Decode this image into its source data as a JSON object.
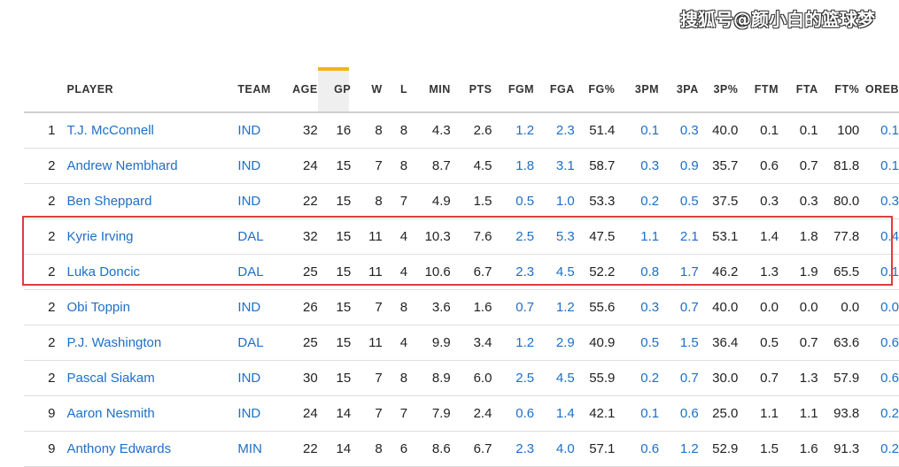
{
  "watermark": "搜狐号@颜小白的篮球梦",
  "columns": [
    "",
    "PLAYER",
    "TEAM",
    "AGE",
    "GP",
    "W",
    "L",
    "MIN",
    "PTS",
    "FGM",
    "FGA",
    "FG%",
    "3PM",
    "3PA",
    "3P%",
    "FTM",
    "FTA",
    "FT%",
    "OREB"
  ],
  "rows": [
    [
      "1",
      "T.J. McConnell",
      "IND",
      "32",
      "16",
      "8",
      "8",
      "4.3",
      "2.6",
      "1.2",
      "2.3",
      "51.4",
      "0.1",
      "0.3",
      "40.0",
      "0.1",
      "0.1",
      "100",
      "0.1"
    ],
    [
      "2",
      "Andrew Nembhard",
      "IND",
      "24",
      "15",
      "7",
      "8",
      "8.7",
      "4.5",
      "1.8",
      "3.1",
      "58.7",
      "0.3",
      "0.9",
      "35.7",
      "0.6",
      "0.7",
      "81.8",
      "0.1"
    ],
    [
      "2",
      "Ben Sheppard",
      "IND",
      "22",
      "15",
      "8",
      "7",
      "4.9",
      "1.5",
      "0.5",
      "1.0",
      "53.3",
      "0.2",
      "0.5",
      "37.5",
      "0.3",
      "0.3",
      "80.0",
      "0.3"
    ],
    [
      "2",
      "Kyrie Irving",
      "DAL",
      "32",
      "15",
      "11",
      "4",
      "10.3",
      "7.6",
      "2.5",
      "5.3",
      "47.5",
      "1.1",
      "2.1",
      "53.1",
      "1.4",
      "1.8",
      "77.8",
      "0.4"
    ],
    [
      "2",
      "Luka Doncic",
      "DAL",
      "25",
      "15",
      "11",
      "4",
      "10.6",
      "6.7",
      "2.3",
      "4.5",
      "52.2",
      "0.8",
      "1.7",
      "46.2",
      "1.3",
      "1.9",
      "65.5",
      "0.1"
    ],
    [
      "2",
      "Obi Toppin",
      "IND",
      "26",
      "15",
      "7",
      "8",
      "3.6",
      "1.6",
      "0.7",
      "1.2",
      "55.6",
      "0.3",
      "0.7",
      "40.0",
      "0.0",
      "0.0",
      "0.0",
      "0.0"
    ],
    [
      "2",
      "P.J. Washington",
      "DAL",
      "25",
      "15",
      "11",
      "4",
      "9.9",
      "3.4",
      "1.2",
      "2.9",
      "40.9",
      "0.5",
      "1.5",
      "36.4",
      "0.5",
      "0.7",
      "63.6",
      "0.6"
    ],
    [
      "2",
      "Pascal Siakam",
      "IND",
      "30",
      "15",
      "7",
      "8",
      "8.9",
      "6.0",
      "2.5",
      "4.5",
      "55.9",
      "0.2",
      "0.7",
      "30.0",
      "0.7",
      "1.3",
      "57.9",
      "0.6"
    ],
    [
      "9",
      "Aaron Nesmith",
      "IND",
      "24",
      "14",
      "7",
      "7",
      "7.9",
      "2.4",
      "0.6",
      "1.4",
      "42.1",
      "0.1",
      "0.6",
      "25.0",
      "1.1",
      "1.1",
      "93.8",
      "0.2"
    ],
    [
      "9",
      "Anthony Edwards",
      "MIN",
      "22",
      "14",
      "8",
      "6",
      "8.6",
      "6.7",
      "2.3",
      "4.0",
      "57.1",
      "0.6",
      "1.2",
      "52.9",
      "1.5",
      "1.6",
      "91.3",
      "0.2"
    ]
  ],
  "link_columns": [
    1,
    2,
    9,
    10,
    12,
    13,
    18
  ],
  "sorted_column": "GP",
  "highlighted_rows": [
    3,
    4
  ],
  "colors": {
    "link": "#1e6fc7",
    "sort_indicator": "#f0b51e",
    "highlight_box": "#e23b3b"
  }
}
